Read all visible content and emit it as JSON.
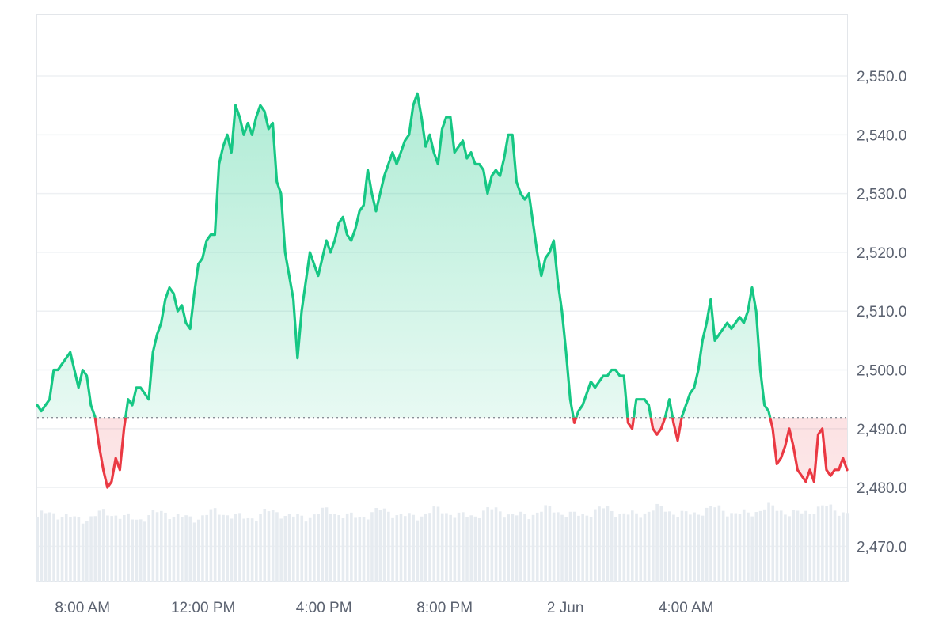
{
  "chart_data": {
    "type": "area",
    "title": "",
    "xlabel": "",
    "ylabel": "",
    "baseline": 2491.9,
    "ylim": [
      2464.0,
      2560.5
    ],
    "y_ticks": [
      2550.0,
      2540.0,
      2530.0,
      2520.0,
      2510.0,
      2500.0,
      2490.0,
      2480.0,
      2470.0
    ],
    "y_tick_labels": [
      "2,550.0",
      "2,540.0",
      "2,530.0",
      "2,520.0",
      "2,510.0",
      "2,500.0",
      "2,490.0",
      "2,480.0",
      "2,470.0"
    ],
    "x_start": "06:30",
    "x_end": "2 Jun 09:20",
    "x_ticks": [
      "08:00",
      "12:00",
      "16:00",
      "20:00",
      "2 Jun 00:00",
      "2 Jun 04:00"
    ],
    "x_tick_labels": [
      "8:00 AM",
      "12:00 PM",
      "4:00 PM",
      "8:00 PM",
      "2 Jun",
      "4:00 AM"
    ],
    "colors": {
      "up": "#16c784",
      "down": "#ea3943",
      "volume": "#e6ebf0",
      "grid": "#eef0f3",
      "axis_text": "#5b6270"
    },
    "series": [
      {
        "values": [
          2494,
          2493,
          2494,
          2495,
          2500,
          2500,
          2501,
          2502,
          2503,
          2500,
          2497,
          2500,
          2499,
          2494,
          2492,
          2487,
          2483,
          2480,
          2481,
          2485,
          2483,
          2490,
          2495,
          2494,
          2497,
          2497,
          2496,
          2495,
          2503,
          2506,
          2508,
          2512,
          2514,
          2513,
          2510,
          2511,
          2508,
          2507,
          2513,
          2518,
          2519,
          2522,
          2523,
          2523,
          2535,
          2538,
          2540,
          2537,
          2545,
          2543,
          2540,
          2542,
          2540,
          2543,
          2545,
          2544,
          2541,
          2542,
          2532,
          2530,
          2520,
          2516,
          2512,
          2502,
          2510,
          2515,
          2520,
          2518,
          2516,
          2519,
          2522,
          2520,
          2522,
          2525,
          2526,
          2523,
          2522,
          2524,
          2527,
          2528,
          2534,
          2530,
          2527,
          2530,
          2533,
          2535,
          2537,
          2535,
          2537,
          2539,
          2540,
          2545,
          2547,
          2543,
          2538,
          2540,
          2537,
          2535,
          2541,
          2543,
          2543,
          2537,
          2538,
          2539,
          2536,
          2537,
          2535,
          2535,
          2534,
          2530,
          2533,
          2534,
          2533,
          2536,
          2540,
          2540,
          2532,
          2530,
          2529,
          2530,
          2525,
          2520,
          2516,
          2519,
          2520,
          2522,
          2515,
          2510,
          2503,
          2495,
          2491,
          2493,
          2494,
          2496,
          2498,
          2497,
          2498,
          2499,
          2499,
          2500,
          2500,
          2499,
          2499,
          2491,
          2490,
          2495,
          2495,
          2495,
          2494,
          2490,
          2489,
          2490,
          2492,
          2495,
          2491,
          2488,
          2492,
          2494,
          2496,
          2497,
          2500,
          2505,
          2508,
          2512,
          2505,
          2506,
          2507,
          2508,
          2507,
          2508,
          2509,
          2508,
          2510,
          2514,
          2510,
          2500,
          2494,
          2493,
          2490,
          2484,
          2485,
          2487,
          2490,
          2487,
          2483,
          2482,
          2481,
          2483,
          2481,
          2489,
          2490,
          2483,
          2482,
          2483,
          2483,
          2485,
          2483
        ]
      }
    ]
  }
}
